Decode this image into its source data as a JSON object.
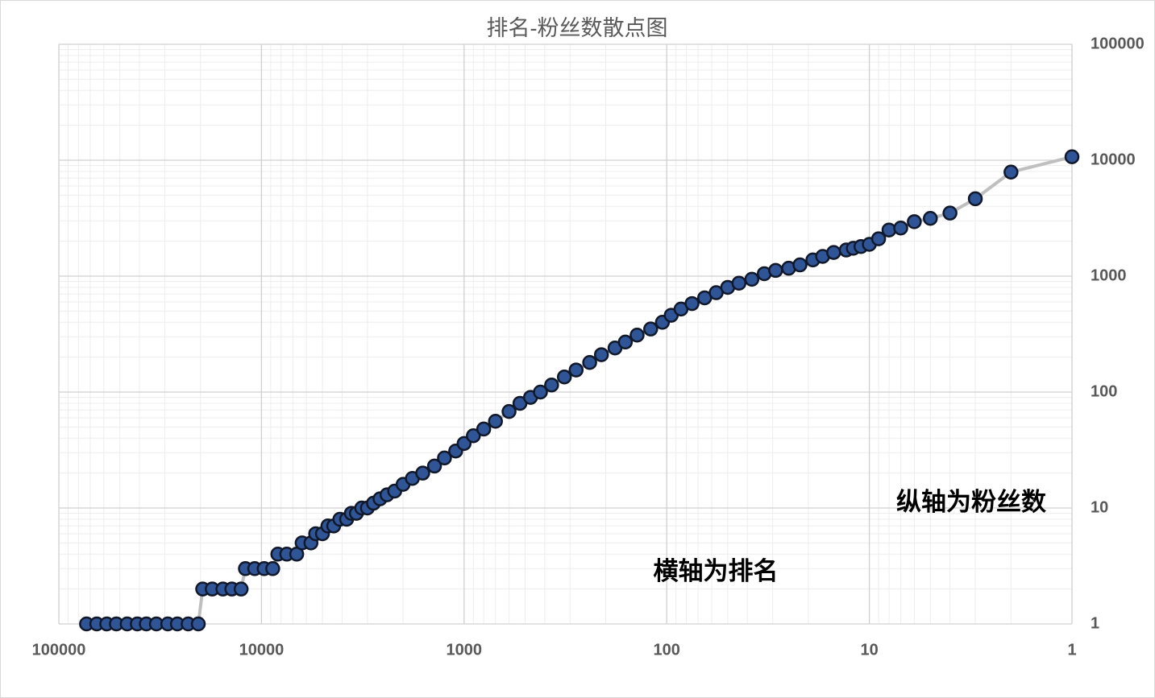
{
  "chart_data": {
    "type": "scatter",
    "title": "排名-粉丝数散点图",
    "annotations": [
      "纵轴为粉丝数",
      "横轴为排名"
    ],
    "x": [
      73000,
      65000,
      58000,
      52000,
      46000,
      41000,
      37000,
      33000,
      29000,
      26000,
      23000,
      20500,
      19500,
      17500,
      15500,
      14000,
      12600,
      12000,
      10800,
      9700,
      8800,
      8300,
      7500,
      6700,
      6300,
      5700,
      5400,
      5000,
      4700,
      4400,
      4100,
      3800,
      3600,
      3400,
      3200,
      3000,
      2800,
      2600,
      2400,
      2200,
      2000,
      1800,
      1600,
      1400,
      1250,
      1100,
      1000,
      900,
      800,
      700,
      600,
      530,
      470,
      420,
      370,
      320,
      280,
      240,
      210,
      180,
      160,
      140,
      120,
      105,
      95,
      85,
      75,
      65,
      57,
      50,
      44,
      38,
      33,
      29,
      25,
      22,
      19,
      17,
      15,
      13,
      12,
      11,
      10,
      9,
      8,
      7,
      6,
      5,
      4,
      3,
      2,
      1
    ],
    "values": [
      1,
      1,
      1,
      1,
      1,
      1,
      1,
      1,
      1,
      1,
      1,
      1,
      2,
      2,
      2,
      2,
      2,
      3,
      3,
      3,
      3,
      4,
      4,
      4,
      5,
      5,
      6,
      6,
      7,
      7,
      8,
      8,
      9,
      9,
      10,
      10,
      11,
      12,
      13,
      14,
      16,
      18,
      20,
      23,
      27,
      31,
      36,
      42,
      48,
      56,
      68,
      80,
      90,
      100,
      115,
      135,
      155,
      180,
      210,
      240,
      270,
      310,
      350,
      400,
      460,
      520,
      580,
      650,
      720,
      800,
      870,
      940,
      1050,
      1120,
      1170,
      1250,
      1380,
      1480,
      1600,
      1680,
      1740,
      1800,
      1880,
      2100,
      2500,
      2600,
      2950,
      3150,
      3500,
      4650,
      7900,
      10700
    ],
    "color": "#2f5597",
    "xlim": [
      100000,
      1
    ],
    "xticks": [
      100000,
      10000,
      1000,
      100,
      10,
      1
    ],
    "ylim": [
      1,
      100000
    ],
    "yticks": [
      1,
      10,
      100,
      1000,
      10000,
      100000
    ],
    "log_x": true,
    "log_y": true,
    "grid": true
  }
}
